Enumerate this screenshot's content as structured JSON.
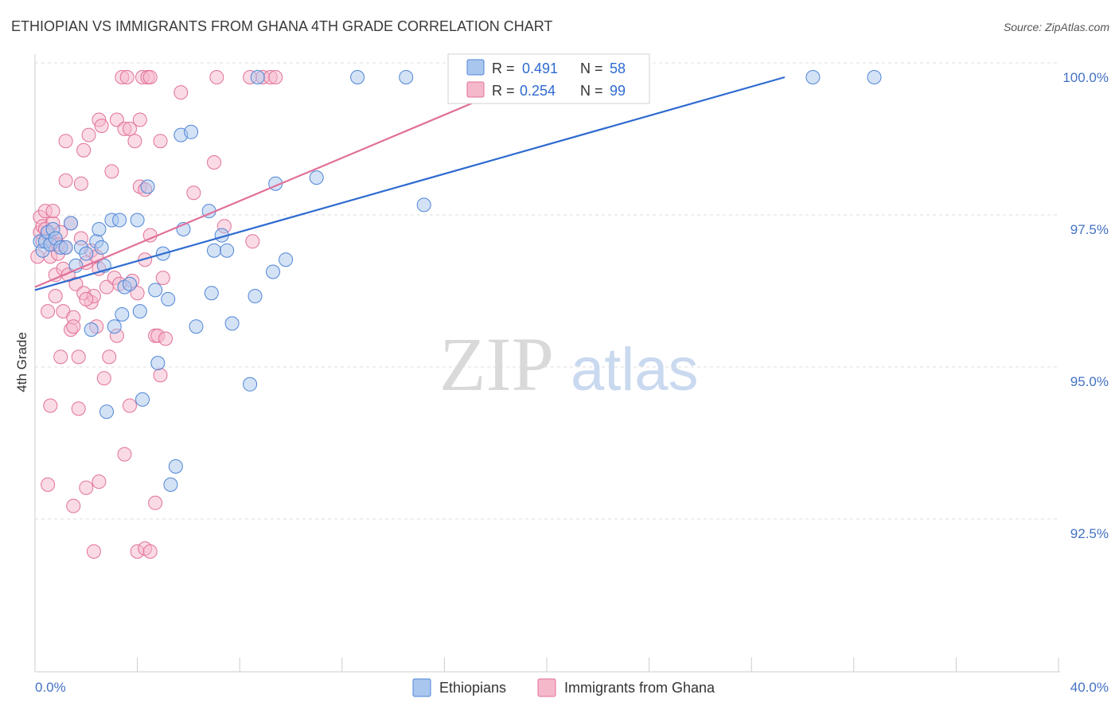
{
  "chart_data": {
    "type": "scatter",
    "title": "ETHIOPIAN VS IMMIGRANTS FROM GHANA 4TH GRADE CORRELATION CHART",
    "source": "Source: ZipAtlas.com",
    "ylabel": "4th Grade",
    "xlim": [
      0,
      40
    ],
    "ylim": [
      90.25,
      100.3
    ],
    "x_tick_labels": [
      "0.0%",
      "40.0%"
    ],
    "y_ticks": [
      {
        "value": 92.5,
        "label": "92.5%"
      },
      {
        "value": 95.0,
        "label": "95.0%"
      },
      {
        "value": 97.5,
        "label": "97.5%"
      },
      {
        "value": 100.0,
        "label": "100.0%"
      }
    ],
    "watermark": {
      "zip": "ZIP",
      "atlas": "atlas"
    },
    "colors": {
      "blue_fill": "#a9c6ee",
      "blue_stroke": "#4f86d6",
      "blue_line": "#2e6bd0",
      "pink_fill": "#f5b8cb",
      "pink_stroke": "#e27199",
      "pink_line": "#e0709a",
      "grid": "#dddddd",
      "axis": "#cccccc"
    },
    "legend": [
      {
        "r_label": "R = ",
        "r_value": "0.491",
        "n_label": "N = ",
        "n_value": "58"
      },
      {
        "r_label": "R = ",
        "r_value": "0.254",
        "n_label": "N = ",
        "n_value": "99"
      }
    ],
    "series": [
      {
        "name": "Ethiopians",
        "trend": {
          "x0": 0,
          "y0": 96.5,
          "x1": 29.3,
          "y1": 100.0
        },
        "points": [
          [
            0.2,
            97.3
          ],
          [
            0.3,
            97.15
          ],
          [
            0.4,
            97.3
          ],
          [
            0.5,
            97.45
          ],
          [
            0.6,
            97.25
          ],
          [
            0.7,
            97.5
          ],
          [
            0.8,
            97.35
          ],
          [
            1.0,
            97.2
          ],
          [
            1.2,
            97.2
          ],
          [
            1.4,
            97.6
          ],
          [
            1.6,
            96.9
          ],
          [
            1.8,
            97.2
          ],
          [
            2.0,
            97.1
          ],
          [
            2.2,
            95.85
          ],
          [
            2.4,
            97.3
          ],
          [
            2.5,
            97.5
          ],
          [
            2.6,
            97.2
          ],
          [
            2.7,
            96.9
          ],
          [
            2.8,
            94.5
          ],
          [
            3.0,
            97.65
          ],
          [
            3.1,
            95.9
          ],
          [
            3.3,
            97.65
          ],
          [
            3.4,
            96.1
          ],
          [
            3.5,
            96.55
          ],
          [
            3.7,
            96.6
          ],
          [
            4.0,
            97.65
          ],
          [
            4.1,
            96.15
          ],
          [
            4.2,
            94.7
          ],
          [
            4.4,
            98.2
          ],
          [
            4.7,
            96.5
          ],
          [
            4.8,
            95.3
          ],
          [
            5.0,
            97.1
          ],
          [
            5.2,
            96.35
          ],
          [
            5.3,
            93.3
          ],
          [
            5.5,
            93.6
          ],
          [
            5.7,
            99.05
          ],
          [
            5.8,
            97.5
          ],
          [
            6.1,
            99.1
          ],
          [
            6.3,
            95.9
          ],
          [
            6.8,
            97.8
          ],
          [
            6.9,
            96.45
          ],
          [
            7.0,
            97.15
          ],
          [
            7.3,
            97.4
          ],
          [
            7.5,
            97.15
          ],
          [
            7.7,
            95.95
          ],
          [
            8.4,
            94.95
          ],
          [
            8.6,
            96.4
          ],
          [
            8.7,
            100.0
          ],
          [
            9.3,
            96.8
          ],
          [
            9.4,
            98.25
          ],
          [
            9.8,
            97.0
          ],
          [
            11.0,
            98.35
          ],
          [
            12.6,
            100.0
          ],
          [
            14.5,
            100.0
          ],
          [
            15.2,
            97.9
          ],
          [
            18.3,
            100.0
          ],
          [
            30.4,
            100.0
          ],
          [
            32.8,
            100.0
          ]
        ]
      },
      {
        "name": "Immigrants from Ghana",
        "trend": {
          "x0": 0,
          "y0": 96.55,
          "x1": 19.5,
          "y1": 100.0
        },
        "points": [
          [
            0.1,
            97.05
          ],
          [
            0.2,
            97.45
          ],
          [
            0.2,
            97.7
          ],
          [
            0.3,
            97.3
          ],
          [
            0.3,
            97.55
          ],
          [
            0.4,
            97.5
          ],
          [
            0.4,
            97.8
          ],
          [
            0.5,
            97.45
          ],
          [
            0.5,
            96.15
          ],
          [
            0.6,
            97.3
          ],
          [
            0.6,
            97.05
          ],
          [
            0.7,
            97.6
          ],
          [
            0.7,
            97.8
          ],
          [
            0.8,
            97.35
          ],
          [
            0.8,
            96.4
          ],
          [
            0.8,
            96.75
          ],
          [
            0.9,
            97.1
          ],
          [
            0.9,
            97.25
          ],
          [
            1.0,
            97.45
          ],
          [
            1.0,
            95.4
          ],
          [
            1.1,
            96.15
          ],
          [
            1.1,
            96.85
          ],
          [
            1.2,
            98.3
          ],
          [
            1.2,
            98.95
          ],
          [
            1.3,
            96.75
          ],
          [
            1.4,
            97.6
          ],
          [
            1.4,
            95.85
          ],
          [
            1.5,
            96.05
          ],
          [
            1.5,
            95.9
          ],
          [
            1.6,
            96.6
          ],
          [
            1.7,
            95.4
          ],
          [
            1.7,
            94.55
          ],
          [
            1.8,
            98.25
          ],
          [
            1.8,
            97.35
          ],
          [
            1.9,
            98.8
          ],
          [
            1.9,
            96.45
          ],
          [
            2.0,
            93.25
          ],
          [
            2.0,
            96.95
          ],
          [
            2.1,
            99.05
          ],
          [
            2.2,
            97.15
          ],
          [
            2.2,
            96.3
          ],
          [
            2.3,
            96.4
          ],
          [
            2.4,
            97.05
          ],
          [
            2.4,
            95.9
          ],
          [
            2.5,
            99.3
          ],
          [
            2.5,
            96.85
          ],
          [
            2.6,
            99.2
          ],
          [
            2.7,
            95.05
          ],
          [
            2.8,
            96.55
          ],
          [
            2.9,
            95.4
          ],
          [
            3.0,
            98.45
          ],
          [
            3.1,
            96.7
          ],
          [
            3.2,
            95.75
          ],
          [
            3.2,
            99.3
          ],
          [
            3.3,
            96.6
          ],
          [
            3.4,
            100.0
          ],
          [
            3.5,
            99.15
          ],
          [
            3.6,
            100.0
          ],
          [
            3.7,
            94.6
          ],
          [
            3.7,
            99.15
          ],
          [
            3.8,
            96.65
          ],
          [
            3.9,
            98.95
          ],
          [
            4.0,
            96.45
          ],
          [
            4.1,
            99.3
          ],
          [
            4.1,
            98.2
          ],
          [
            4.2,
            100.0
          ],
          [
            4.3,
            98.15
          ],
          [
            4.3,
            97.0
          ],
          [
            4.4,
            100.0
          ],
          [
            4.5,
            97.4
          ],
          [
            4.5,
            100.0
          ],
          [
            4.7,
            95.75
          ],
          [
            4.8,
            95.75
          ],
          [
            4.9,
            95.1
          ],
          [
            4.9,
            98.95
          ],
          [
            5.0,
            96.7
          ],
          [
            5.1,
            95.7
          ],
          [
            5.7,
            99.75
          ],
          [
            6.2,
            98.1
          ],
          [
            7.0,
            98.6
          ],
          [
            7.1,
            100.0
          ],
          [
            7.4,
            97.55
          ],
          [
            8.4,
            100.0
          ],
          [
            8.5,
            97.3
          ],
          [
            8.9,
            100.0
          ],
          [
            9.2,
            100.0
          ],
          [
            9.4,
            100.0
          ],
          [
            0.5,
            93.3
          ],
          [
            1.5,
            92.95
          ],
          [
            2.5,
            93.35
          ],
          [
            3.5,
            93.8
          ],
          [
            4.0,
            92.2
          ],
          [
            4.3,
            92.25
          ],
          [
            4.5,
            92.2
          ],
          [
            4.7,
            93.0
          ],
          [
            2.3,
            92.2
          ],
          [
            0.6,
            94.6
          ],
          [
            1.2,
            97.2
          ],
          [
            2.0,
            96.35
          ]
        ]
      }
    ]
  }
}
